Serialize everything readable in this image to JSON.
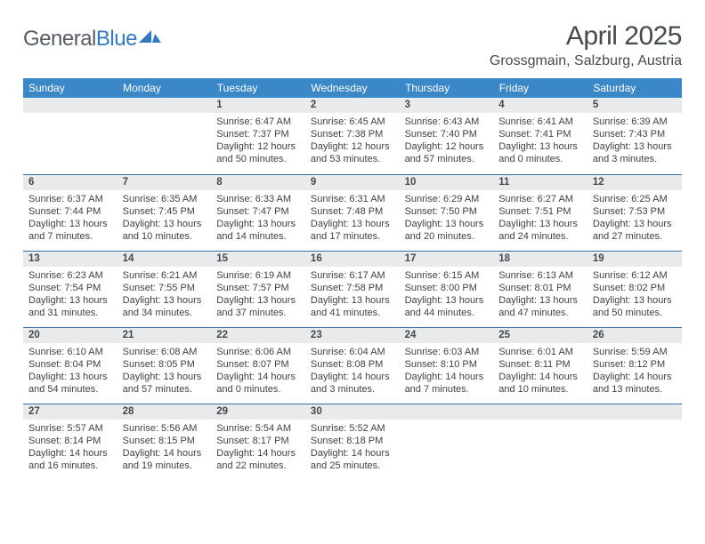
{
  "logo": {
    "word1": "General",
    "word2": "Blue"
  },
  "title": "April 2025",
  "location": "Grossgmain, Salzburg, Austria",
  "colors": {
    "header_bg": "#3a88c8",
    "header_text": "#ffffff",
    "daynum_bg": "#e9eaeb",
    "row_border": "#3a6fa0",
    "text": "#3d4248",
    "title_text": "#444a50",
    "logo_gray": "#555c63",
    "logo_blue": "#2f7ac0"
  },
  "weekdays": [
    "Sunday",
    "Monday",
    "Tuesday",
    "Wednesday",
    "Thursday",
    "Friday",
    "Saturday"
  ],
  "weeks": [
    [
      null,
      null,
      {
        "n": "1",
        "sr": "6:47 AM",
        "ss": "7:37 PM",
        "dl": "12 hours and 50 minutes."
      },
      {
        "n": "2",
        "sr": "6:45 AM",
        "ss": "7:38 PM",
        "dl": "12 hours and 53 minutes."
      },
      {
        "n": "3",
        "sr": "6:43 AM",
        "ss": "7:40 PM",
        "dl": "12 hours and 57 minutes."
      },
      {
        "n": "4",
        "sr": "6:41 AM",
        "ss": "7:41 PM",
        "dl": "13 hours and 0 minutes."
      },
      {
        "n": "5",
        "sr": "6:39 AM",
        "ss": "7:43 PM",
        "dl": "13 hours and 3 minutes."
      }
    ],
    [
      {
        "n": "6",
        "sr": "6:37 AM",
        "ss": "7:44 PM",
        "dl": "13 hours and 7 minutes."
      },
      {
        "n": "7",
        "sr": "6:35 AM",
        "ss": "7:45 PM",
        "dl": "13 hours and 10 minutes."
      },
      {
        "n": "8",
        "sr": "6:33 AM",
        "ss": "7:47 PM",
        "dl": "13 hours and 14 minutes."
      },
      {
        "n": "9",
        "sr": "6:31 AM",
        "ss": "7:48 PM",
        "dl": "13 hours and 17 minutes."
      },
      {
        "n": "10",
        "sr": "6:29 AM",
        "ss": "7:50 PM",
        "dl": "13 hours and 20 minutes."
      },
      {
        "n": "11",
        "sr": "6:27 AM",
        "ss": "7:51 PM",
        "dl": "13 hours and 24 minutes."
      },
      {
        "n": "12",
        "sr": "6:25 AM",
        "ss": "7:53 PM",
        "dl": "13 hours and 27 minutes."
      }
    ],
    [
      {
        "n": "13",
        "sr": "6:23 AM",
        "ss": "7:54 PM",
        "dl": "13 hours and 31 minutes."
      },
      {
        "n": "14",
        "sr": "6:21 AM",
        "ss": "7:55 PM",
        "dl": "13 hours and 34 minutes."
      },
      {
        "n": "15",
        "sr": "6:19 AM",
        "ss": "7:57 PM",
        "dl": "13 hours and 37 minutes."
      },
      {
        "n": "16",
        "sr": "6:17 AM",
        "ss": "7:58 PM",
        "dl": "13 hours and 41 minutes."
      },
      {
        "n": "17",
        "sr": "6:15 AM",
        "ss": "8:00 PM",
        "dl": "13 hours and 44 minutes."
      },
      {
        "n": "18",
        "sr": "6:13 AM",
        "ss": "8:01 PM",
        "dl": "13 hours and 47 minutes."
      },
      {
        "n": "19",
        "sr": "6:12 AM",
        "ss": "8:02 PM",
        "dl": "13 hours and 50 minutes."
      }
    ],
    [
      {
        "n": "20",
        "sr": "6:10 AM",
        "ss": "8:04 PM",
        "dl": "13 hours and 54 minutes."
      },
      {
        "n": "21",
        "sr": "6:08 AM",
        "ss": "8:05 PM",
        "dl": "13 hours and 57 minutes."
      },
      {
        "n": "22",
        "sr": "6:06 AM",
        "ss": "8:07 PM",
        "dl": "14 hours and 0 minutes."
      },
      {
        "n": "23",
        "sr": "6:04 AM",
        "ss": "8:08 PM",
        "dl": "14 hours and 3 minutes."
      },
      {
        "n": "24",
        "sr": "6:03 AM",
        "ss": "8:10 PM",
        "dl": "14 hours and 7 minutes."
      },
      {
        "n": "25",
        "sr": "6:01 AM",
        "ss": "8:11 PM",
        "dl": "14 hours and 10 minutes."
      },
      {
        "n": "26",
        "sr": "5:59 AM",
        "ss": "8:12 PM",
        "dl": "14 hours and 13 minutes."
      }
    ],
    [
      {
        "n": "27",
        "sr": "5:57 AM",
        "ss": "8:14 PM",
        "dl": "14 hours and 16 minutes."
      },
      {
        "n": "28",
        "sr": "5:56 AM",
        "ss": "8:15 PM",
        "dl": "14 hours and 19 minutes."
      },
      {
        "n": "29",
        "sr": "5:54 AM",
        "ss": "8:17 PM",
        "dl": "14 hours and 22 minutes."
      },
      {
        "n": "30",
        "sr": "5:52 AM",
        "ss": "8:18 PM",
        "dl": "14 hours and 25 minutes."
      },
      null,
      null,
      null
    ]
  ],
  "labels": {
    "sunrise": "Sunrise:",
    "sunset": "Sunset:",
    "daylight": "Daylight:"
  }
}
